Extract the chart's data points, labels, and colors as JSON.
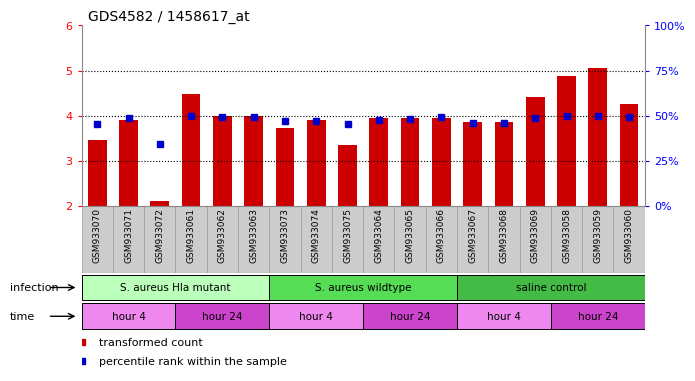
{
  "title": "GDS4582 / 1458617_at",
  "samples": [
    "GSM933070",
    "GSM933071",
    "GSM933072",
    "GSM933061",
    "GSM933062",
    "GSM933063",
    "GSM933073",
    "GSM933074",
    "GSM933075",
    "GSM933064",
    "GSM933065",
    "GSM933066",
    "GSM933067",
    "GSM933068",
    "GSM933069",
    "GSM933058",
    "GSM933059",
    "GSM933060"
  ],
  "bar_values": [
    3.45,
    3.9,
    2.1,
    4.48,
    4.0,
    4.0,
    3.72,
    3.9,
    3.35,
    3.95,
    3.95,
    3.95,
    3.85,
    3.85,
    4.42,
    4.88,
    5.05,
    4.25
  ],
  "dot_values": [
    3.82,
    3.95,
    3.37,
    4.0,
    3.98,
    3.98,
    3.88,
    3.88,
    3.82,
    3.9,
    3.93,
    3.97,
    3.84,
    3.84,
    3.95,
    4.0,
    4.0,
    3.97
  ],
  "ylim_left": [
    2,
    6
  ],
  "ylim_right": [
    0,
    100
  ],
  "yticks_left": [
    2,
    3,
    4,
    5,
    6
  ],
  "yticks_right": [
    0,
    25,
    50,
    75,
    100
  ],
  "bar_color": "#cc0000",
  "dot_color": "#0000cc",
  "bar_bottom": 2,
  "infection_groups": [
    {
      "label": "S. aureus Hla mutant",
      "start": 0,
      "end": 6,
      "color": "#bbffbb"
    },
    {
      "label": "S. aureus wildtype",
      "start": 6,
      "end": 12,
      "color": "#55dd55"
    },
    {
      "label": "saline control",
      "start": 12,
      "end": 18,
      "color": "#44bb44"
    }
  ],
  "time_groups": [
    {
      "label": "hour 4",
      "start": 0,
      "end": 3,
      "color": "#ee88ee"
    },
    {
      "label": "hour 24",
      "start": 3,
      "end": 6,
      "color": "#cc44cc"
    },
    {
      "label": "hour 4",
      "start": 6,
      "end": 9,
      "color": "#ee88ee"
    },
    {
      "label": "hour 24",
      "start": 9,
      "end": 12,
      "color": "#cc44cc"
    },
    {
      "label": "hour 4",
      "start": 12,
      "end": 15,
      "color": "#ee88ee"
    },
    {
      "label": "hour 24",
      "start": 15,
      "end": 18,
      "color": "#cc44cc"
    }
  ],
  "legend_bar_label": "transformed count",
  "legend_dot_label": "percentile rank within the sample",
  "xticklabel_bg": "#cccccc"
}
